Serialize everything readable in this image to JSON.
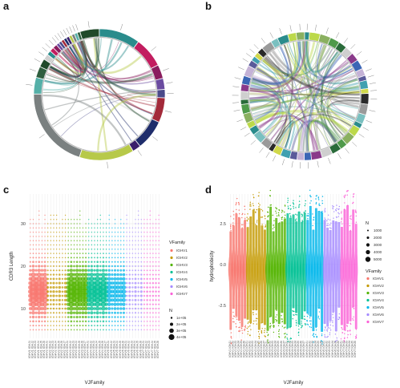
{
  "panels": {
    "a": "a",
    "b": "b",
    "c": "c",
    "d": "d"
  },
  "chart_data": [
    {
      "id": "a",
      "type": "chord",
      "colors": [
        "#2a8c8c",
        "#c21d5f",
        "#8a1d5e",
        "#6a4ba0",
        "#4a4a8a",
        "#a32a3a",
        "#1f2d6b",
        "#3a1f6b",
        "#b7c94a",
        "#7a8080",
        "#55b0a8",
        "#2f5f3f",
        "#204a2a",
        "#d0d0d0"
      ]
    },
    {
      "id": "b",
      "type": "chord",
      "colors": [
        "#2a8c8c",
        "#bcd94a",
        "#8ab060",
        "#4f9a4a",
        "#2a6b3a",
        "#cfcfcf",
        "#8a3a8a",
        "#3b66b5",
        "#c4b2d6",
        "#5a5a9a",
        "#40a0b0",
        "#d0d84a",
        "#2a2a2a",
        "#9a9a9a",
        "#7ac0c0"
      ]
    },
    {
      "id": "c",
      "type": "scatter",
      "xlabel": "VJFamily",
      "ylabel": "CDR3 Length",
      "yticks": [
        10,
        20,
        30
      ],
      "ylim": [
        3,
        37
      ],
      "legend_title_color": "VFamily",
      "legend_title_size": "N",
      "families": [
        "IGHV1",
        "IGHV2",
        "IGHV3",
        "IGHV4",
        "IGHV5",
        "IGHV6",
        "IGHV7"
      ],
      "family_colors": [
        "#F8766D",
        "#C49A00",
        "#53B400",
        "#00C094",
        "#00B6EB",
        "#A58AFF",
        "#FB61D7"
      ],
      "family_groups": [
        6,
        7,
        7,
        7,
        6,
        6,
        6
      ],
      "size_legend": [
        "1e+05",
        "2e+05",
        "3e+05",
        "4e+05"
      ],
      "x_categories": [
        "IGHV1 IGHJ1",
        "IGHV1 IGHJ2",
        "IGHV1 IGHJ3",
        "IGHV1 IGHJ4",
        "IGHV1 IGHJ5",
        "IGHV1 IGHJ6",
        "IGHV2 IGHJ1",
        "IGHV2 IGHJ2",
        "IGHV2 IGHJ3",
        "IGHV2 IGHJ4",
        "IGHV2 IGHJ5",
        "IGHV2 IGHJ6",
        "IGHV2 IGHJ7",
        "IGHV3 IGHJ1",
        "IGHV3 IGHJ2",
        "IGHV3 IGHJ3",
        "IGHV3 IGHJ4",
        "IGHV3 IGHJ5",
        "IGHV3 IGHJ6",
        "IGHV3 IGHJ7",
        "IGHV4 IGHJ1",
        "IGHV4 IGHJ2",
        "IGHV4 IGHJ3",
        "IGHV4 IGHJ4",
        "IGHV4 IGHJ5",
        "IGHV4 IGHJ6",
        "IGHV4 IGHJ7",
        "IGHV5 IGHJ1",
        "IGHV5 IGHJ2",
        "IGHV5 IGHJ3",
        "IGHV5 IGHJ4",
        "IGHV5 IGHJ5",
        "IGHV5 IGHJ6",
        "IGHV6 IGHJ1",
        "IGHV6 IGHJ2",
        "IGHV6 IGHJ3",
        "IGHV6 IGHJ4",
        "IGHV6 IGHJ5",
        "IGHV6 IGHJ6",
        "IGHV7 IGHJ1",
        "IGHV7 IGHJ2",
        "IGHV7 IGHJ3",
        "IGHV7 IGHJ4",
        "IGHV7 IGHJ5",
        "IGHV7 IGHJ6"
      ]
    },
    {
      "id": "d",
      "type": "violin",
      "xlabel": "VJFamily",
      "ylabel": "hydrophobicity",
      "yticks": [
        2.5,
        0.0,
        -2.5
      ],
      "ytick_labels": [
        "2.5",
        "0.0",
        "-2.5"
      ],
      "ylim": [
        -4.5,
        4.3
      ],
      "legend_title_size": "N",
      "size_legend": [
        "1000",
        "2000",
        "3000",
        "4000",
        "5000"
      ],
      "legend_title_color": "VFamily",
      "families": [
        "IGHV1",
        "IGHV2",
        "IGHV3",
        "IGHV4",
        "IGHV5",
        "IGHV6",
        "IGHV7"
      ],
      "family_colors": [
        "#F8766D",
        "#C49A00",
        "#53B400",
        "#00C094",
        "#00B6EB",
        "#A58AFF",
        "#FB61D7"
      ],
      "family_groups": [
        6,
        7,
        7,
        7,
        6,
        6,
        6
      ],
      "x_categories": [
        "IGHV1 IGHJ1",
        "IGHV1 IGHJ2",
        "IGHV1 IGHJ3",
        "IGHV1 IGHJ4",
        "IGHV1 IGHJ5",
        "IGHV1 IGHJ6",
        "IGHV2 IGHJ1",
        "IGHV2 IGHJ2",
        "IGHV2 IGHJ3",
        "IGHV2 IGHJ4",
        "IGHV2 IGHJ5",
        "IGHV2 IGHJ6",
        "IGHV2 IGHJ7",
        "IGHV3 IGHJ1",
        "IGHV3 IGHJ2",
        "IGHV3 IGHJ3",
        "IGHV3 IGHJ4",
        "IGHV3 IGHJ5",
        "IGHV3 IGHJ6",
        "IGHV3 IGHJ7",
        "IGHV4 IGHJ1",
        "IGHV4 IGHJ2",
        "IGHV4 IGHJ3",
        "IGHV4 IGHJ4",
        "IGHV4 IGHJ5",
        "IGHV4 IGHJ6",
        "IGHV4 IGHJ7",
        "IGHV5 IGHJ1",
        "IGHV5 IGHJ2",
        "IGHV5 IGHJ3",
        "IGHV5 IGHJ4",
        "IGHV5 IGHJ5",
        "IGHV5 IGHJ6",
        "IGHV6 IGHJ1",
        "IGHV6 IGHJ2",
        "IGHV6 IGHJ3",
        "IGHV6 IGHJ4",
        "IGHV6 IGHJ5",
        "IGHV6 IGHJ6",
        "IGHV7 IGHJ1",
        "IGHV7 IGHJ2",
        "IGHV7 IGHJ3",
        "IGHV7 IGHJ4",
        "IGHV7 IGHJ5",
        "IGHV7 IGHJ6"
      ]
    }
  ]
}
